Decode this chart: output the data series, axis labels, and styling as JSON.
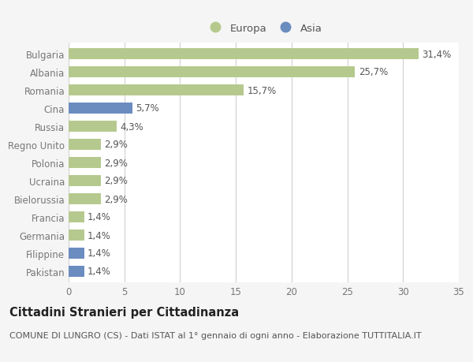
{
  "categories": [
    "Bulgaria",
    "Albania",
    "Romania",
    "Cina",
    "Russia",
    "Regno Unito",
    "Polonia",
    "Ucraina",
    "Bielorussia",
    "Francia",
    "Germania",
    "Filippine",
    "Pakistan"
  ],
  "values": [
    31.4,
    25.7,
    15.7,
    5.7,
    4.3,
    2.9,
    2.9,
    2.9,
    2.9,
    1.4,
    1.4,
    1.4,
    1.4
  ],
  "labels": [
    "31,4%",
    "25,7%",
    "15,7%",
    "5,7%",
    "4,3%",
    "2,9%",
    "2,9%",
    "2,9%",
    "2,9%",
    "1,4%",
    "1,4%",
    "1,4%",
    "1,4%"
  ],
  "colors": [
    "#b5c98e",
    "#b5c98e",
    "#b5c98e",
    "#6b8cbf",
    "#b5c98e",
    "#b5c98e",
    "#b5c98e",
    "#b5c98e",
    "#b5c98e",
    "#b5c98e",
    "#b5c98e",
    "#6b8cbf",
    "#6b8cbf"
  ],
  "europa_color": "#b5c98e",
  "asia_color": "#6b8cbf",
  "xlim": [
    0,
    35
  ],
  "xticks": [
    0,
    5,
    10,
    15,
    20,
    25,
    30,
    35
  ],
  "title": "Cittadini Stranieri per Cittadinanza",
  "subtitle": "COMUNE DI LUNGRO (CS) - Dati ISTAT al 1° gennaio di ogni anno - Elaborazione TUTTITALIA.IT",
  "bg_color": "#f5f5f5",
  "plot_bg_color": "#ffffff",
  "grid_color": "#d0d0d0",
  "bar_height": 0.6,
  "label_fontsize": 8.5,
  "title_fontsize": 10.5,
  "subtitle_fontsize": 8,
  "tick_fontsize": 8.5,
  "legend_fontsize": 9.5
}
